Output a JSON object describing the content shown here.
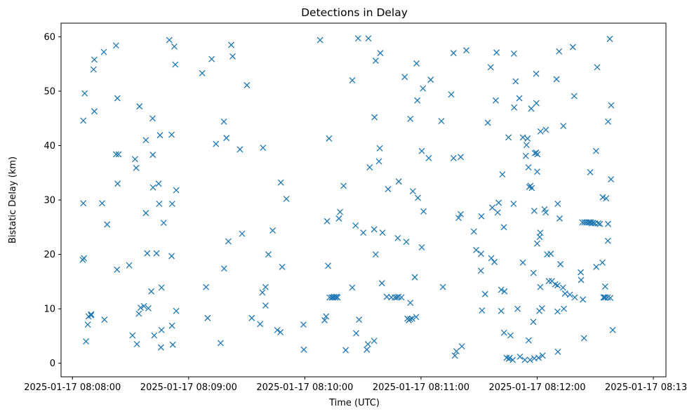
{
  "chart_data": {
    "type": "scatter",
    "title": "Detections in Delay",
    "xlabel": "Time (UTC)",
    "ylabel": "Bistatic Delay (km)",
    "marker": "x",
    "color": "#1f77b4",
    "grid": false,
    "legend": "none",
    "x_unit": "seconds after 2025-01-17 08:08:00 UTC",
    "xlim": [
      -5.9,
      306.5
    ],
    "ylim": [
      -2.5,
      62.5
    ],
    "x_ticks": [
      {
        "v": 0,
        "label": "2025-01-17 08:08:00"
      },
      {
        "v": 60,
        "label": "2025-01-17 08:09:00"
      },
      {
        "v": 120,
        "label": "2025-01-17 08:10:00"
      },
      {
        "v": 180,
        "label": "2025-01-17 08:11:00"
      },
      {
        "v": 240,
        "label": "2025-01-17 08:12:00"
      },
      {
        "v": 300,
        "label": "2025-01-17 08:13:00"
      }
    ],
    "y_ticks": [
      {
        "v": 0,
        "label": "0"
      },
      {
        "v": 10,
        "label": "10"
      },
      {
        "v": 20,
        "label": "20"
      },
      {
        "v": 30,
        "label": "30"
      },
      {
        "v": 40,
        "label": "40"
      },
      {
        "v": 50,
        "label": "50"
      },
      {
        "v": 60,
        "label": "60"
      }
    ],
    "points": [
      [
        5.6,
        44.6
      ],
      [
        5.6,
        29.4
      ],
      [
        5.3,
        19.0
      ],
      [
        5.9,
        19.3
      ],
      [
        6.3,
        49.6
      ],
      [
        7.0,
        4.0
      ],
      [
        7.9,
        7.1
      ],
      [
        8.3,
        8.6
      ],
      [
        9.6,
        8.8
      ],
      [
        9.6,
        9.0
      ],
      [
        10.9,
        54.0
      ],
      [
        11.3,
        55.8
      ],
      [
        11.3,
        46.3
      ],
      [
        15.3,
        29.4
      ],
      [
        16.2,
        57.2
      ],
      [
        16.5,
        8.0
      ],
      [
        17.9,
        25.5
      ],
      [
        22.5,
        58.4
      ],
      [
        22.5,
        38.4
      ],
      [
        23.2,
        48.7
      ],
      [
        23.3,
        33.0
      ],
      [
        23.0,
        17.2
      ],
      [
        23.8,
        38.4
      ],
      [
        29.3,
        18.0
      ],
      [
        31.0,
        5.1
      ],
      [
        32.3,
        37.5
      ],
      [
        32.9,
        35.9
      ],
      [
        33.3,
        3.5
      ],
      [
        34.3,
        9.1
      ],
      [
        34.6,
        47.2
      ],
      [
        35.2,
        10.2
      ],
      [
        36.9,
        10.5
      ],
      [
        37.9,
        41.0
      ],
      [
        37.9,
        27.6
      ],
      [
        38.6,
        20.2
      ],
      [
        39.2,
        10.1
      ],
      [
        40.7,
        13.2
      ],
      [
        41.4,
        45.0
      ],
      [
        41.5,
        38.3
      ],
      [
        41.6,
        32.3
      ],
      [
        42.2,
        5.1
      ],
      [
        43.4,
        20.2
      ],
      [
        44.5,
        33.0
      ],
      [
        44.8,
        29.3
      ],
      [
        45.2,
        41.9
      ],
      [
        45.7,
        2.9
      ],
      [
        46.0,
        6.1
      ],
      [
        46.0,
        13.9
      ],
      [
        47.1,
        25.8
      ],
      [
        50.0,
        59.4
      ],
      [
        51.2,
        42.0
      ],
      [
        51.2,
        19.7
      ],
      [
        51.4,
        6.9
      ],
      [
        51.5,
        29.3
      ],
      [
        51.8,
        3.4
      ],
      [
        52.6,
        58.2
      ],
      [
        53.1,
        54.9
      ],
      [
        53.6,
        9.6
      ],
      [
        53.6,
        31.8
      ],
      [
        67.0,
        53.3
      ],
      [
        69.0,
        14.0
      ],
      [
        69.8,
        8.3
      ],
      [
        71.9,
        55.9
      ],
      [
        74.1,
        40.3
      ],
      [
        76.5,
        3.7
      ],
      [
        78.2,
        44.4
      ],
      [
        78.3,
        17.4
      ],
      [
        79.5,
        41.4
      ],
      [
        80.5,
        22.4
      ],
      [
        82.0,
        58.5
      ],
      [
        82.7,
        56.4
      ],
      [
        86.5,
        39.3
      ],
      [
        87.6,
        23.8
      ],
      [
        90.1,
        51.1
      ],
      [
        92.6,
        8.3
      ],
      [
        96.9,
        7.2
      ],
      [
        98.4,
        39.6
      ],
      [
        98.1,
        13.0
      ],
      [
        99.7,
        10.6
      ],
      [
        99.7,
        14.0
      ],
      [
        101.2,
        20.0
      ],
      [
        103.4,
        24.4
      ],
      [
        105.8,
        6.1
      ],
      [
        107.6,
        33.2
      ],
      [
        107.4,
        5.7
      ],
      [
        108.3,
        17.7
      ],
      [
        110.5,
        30.2
      ],
      [
        119.3,
        7.1
      ],
      [
        119.5,
        2.5
      ],
      [
        127.9,
        59.4
      ],
      [
        130.2,
        7.9
      ],
      [
        131.0,
        8.6
      ],
      [
        131.5,
        26.1
      ],
      [
        132.0,
        17.9
      ],
      [
        132.5,
        41.3
      ],
      [
        132.8,
        12.1
      ],
      [
        133.9,
        12.1
      ],
      [
        134.5,
        12.1
      ],
      [
        135.2,
        12.2
      ],
      [
        135.8,
        12.1
      ],
      [
        136.4,
        12.2
      ],
      [
        136.9,
        12.1
      ],
      [
        137.6,
        26.6
      ],
      [
        138.2,
        27.8
      ],
      [
        140.0,
        32.6
      ],
      [
        141.1,
        2.4
      ],
      [
        144.5,
        13.9
      ],
      [
        144.5,
        52.0
      ],
      [
        146.5,
        5.5
      ],
      [
        146.2,
        25.3
      ],
      [
        147.5,
        59.7
      ],
      [
        148.0,
        8.0
      ],
      [
        150.2,
        24.0
      ],
      [
        152.0,
        2.5
      ],
      [
        152.6,
        3.5
      ],
      [
        152.8,
        59.7
      ],
      [
        153.5,
        36.0
      ],
      [
        155.8,
        4.1
      ],
      [
        155.8,
        24.6
      ],
      [
        156.0,
        45.2
      ],
      [
        156.6,
        20.0
      ],
      [
        156.6,
        55.6
      ],
      [
        158.3,
        37.1
      ],
      [
        158.7,
        39.5
      ],
      [
        159.0,
        57.0
      ],
      [
        159.8,
        14.7
      ],
      [
        160.1,
        24.0
      ],
      [
        162.3,
        12.2
      ],
      [
        163.0,
        32.0
      ],
      [
        164.7,
        12.1
      ],
      [
        166.5,
        12.1
      ],
      [
        167.5,
        12.1
      ],
      [
        168.0,
        23.0
      ],
      [
        168.3,
        12.2
      ],
      [
        168.5,
        33.4
      ],
      [
        169.9,
        12.1
      ],
      [
        171.6,
        52.6
      ],
      [
        172.4,
        22.3
      ],
      [
        173.0,
        8.2
      ],
      [
        173.7,
        7.9
      ],
      [
        174.4,
        8.1
      ],
      [
        174.5,
        44.9
      ],
      [
        174.5,
        11.1
      ],
      [
        175.4,
        8.2
      ],
      [
        175.8,
        31.6
      ],
      [
        176.8,
        15.8
      ],
      [
        177.5,
        8.5
      ],
      [
        177.7,
        55.1
      ],
      [
        178.1,
        48.3
      ],
      [
        178.4,
        30.4
      ],
      [
        180.4,
        21.3
      ],
      [
        180.4,
        39.0
      ],
      [
        181.0,
        50.5
      ],
      [
        181.3,
        27.9
      ],
      [
        184.0,
        37.7
      ],
      [
        185.0,
        52.1
      ],
      [
        190.5,
        44.5
      ],
      [
        191.3,
        14.0
      ],
      [
        195.6,
        49.4
      ],
      [
        196.8,
        57.0
      ],
      [
        196.8,
        37.7
      ],
      [
        197.5,
        1.4
      ],
      [
        198.3,
        2.2
      ],
      [
        199.4,
        26.7
      ],
      [
        200.5,
        27.4
      ],
      [
        200.5,
        37.9
      ],
      [
        201.1,
        3.1
      ],
      [
        203.4,
        57.5
      ],
      [
        207.3,
        24.2
      ],
      [
        208.5,
        20.8
      ],
      [
        210.9,
        17.0
      ],
      [
        211.0,
        20.1
      ],
      [
        211.2,
        27.0
      ],
      [
        211.5,
        9.7
      ],
      [
        213.1,
        12.7
      ],
      [
        214.5,
        44.2
      ],
      [
        216.0,
        54.4
      ],
      [
        216.3,
        19.3
      ],
      [
        216.8,
        28.6
      ],
      [
        217.9,
        18.6
      ],
      [
        218.6,
        48.3
      ],
      [
        219.0,
        57.1
      ],
      [
        219.6,
        27.7
      ],
      [
        220.1,
        29.5
      ],
      [
        221.4,
        9.6
      ],
      [
        221.4,
        13.5
      ],
      [
        222.0,
        34.7
      ],
      [
        222.8,
        25.0
      ],
      [
        222.9,
        5.6
      ],
      [
        223.1,
        13.2
      ],
      [
        224.2,
        1.0
      ],
      [
        225.2,
        41.5
      ],
      [
        225.4,
        0.8
      ],
      [
        225.8,
        1.0
      ],
      [
        226.2,
        5.1
      ],
      [
        227.4,
        0.6
      ],
      [
        227.8,
        29.3
      ],
      [
        228.0,
        56.9
      ],
      [
        228.1,
        47.0
      ],
      [
        228.9,
        51.8
      ],
      [
        229.9,
        10.0
      ],
      [
        230.8,
        48.7
      ],
      [
        231.1,
        1.2
      ],
      [
        232.6,
        18.5
      ],
      [
        232.6,
        41.5
      ],
      [
        233.6,
        0.6
      ],
      [
        234.1,
        38.1
      ],
      [
        234.5,
        40.1
      ],
      [
        235.0,
        41.3
      ],
      [
        235.5,
        36.0
      ],
      [
        235.6,
        4.2
      ],
      [
        235.9,
        32.4
      ],
      [
        236.3,
        0.6
      ],
      [
        236.5,
        32.6
      ],
      [
        236.9,
        46.8
      ],
      [
        237.2,
        32.2
      ],
      [
        238.0,
        7.6
      ],
      [
        238.1,
        16.6
      ],
      [
        238.5,
        28.0
      ],
      [
        238.5,
        0.9
      ],
      [
        238.8,
        38.6
      ],
      [
        239.5,
        38.7
      ],
      [
        239.5,
        53.2
      ],
      [
        239.6,
        47.8
      ],
      [
        240.0,
        22.0
      ],
      [
        240.0,
        35.2
      ],
      [
        240.1,
        38.4
      ],
      [
        240.7,
        1.0
      ],
      [
        241.1,
        9.6
      ],
      [
        241.3,
        23.2
      ],
      [
        241.6,
        24.0
      ],
      [
        241.6,
        14.0
      ],
      [
        241.7,
        42.6
      ],
      [
        242.5,
        10.1
      ],
      [
        242.8,
        1.4
      ],
      [
        243.8,
        28.3
      ],
      [
        244.5,
        42.9
      ],
      [
        244.4,
        27.7
      ],
      [
        245.1,
        20.0
      ],
      [
        246.0,
        15.1
      ],
      [
        247.0,
        20.1
      ],
      [
        247.6,
        15.1
      ],
      [
        249.3,
        14.5
      ],
      [
        250.0,
        52.2
      ],
      [
        250.5,
        14.3
      ],
      [
        250.5,
        9.5
      ],
      [
        250.6,
        29.3
      ],
      [
        250.7,
        2.1
      ],
      [
        251.3,
        57.3
      ],
      [
        251.6,
        26.6
      ],
      [
        252.0,
        18.2
      ],
      [
        253.3,
        13.9
      ],
      [
        253.5,
        43.6
      ],
      [
        253.8,
        10.0
      ],
      [
        254.4,
        12.8
      ],
      [
        256.9,
        12.6
      ],
      [
        258.4,
        58.1
      ],
      [
        259.1,
        49.1
      ],
      [
        259.4,
        12.1
      ],
      [
        262.5,
        16.7
      ],
      [
        262.7,
        15.3
      ],
      [
        263.3,
        25.9
      ],
      [
        263.6,
        11.7
      ],
      [
        264.2,
        4.6
      ],
      [
        264.4,
        25.9
      ],
      [
        265.4,
        25.9
      ],
      [
        266.4,
        25.9
      ],
      [
        267.1,
        25.9
      ],
      [
        267.4,
        35.1
      ],
      [
        267.7,
        25.9
      ],
      [
        268.2,
        25.7
      ],
      [
        268.9,
        25.8
      ],
      [
        269.8,
        25.7
      ],
      [
        270.5,
        17.7
      ],
      [
        270.4,
        39.0
      ],
      [
        271.0,
        54.4
      ],
      [
        271.5,
        25.7
      ],
      [
        272.4,
        25.6
      ],
      [
        273.7,
        18.5
      ],
      [
        273.9,
        30.5
      ],
      [
        274.2,
        12.1
      ],
      [
        274.6,
        12.1
      ],
      [
        275.1,
        14.1
      ],
      [
        275.2,
        12.1
      ],
      [
        275.6,
        30.3
      ],
      [
        276.4,
        12.1
      ],
      [
        276.6,
        25.6
      ],
      [
        276.5,
        22.5
      ],
      [
        276.6,
        44.4
      ],
      [
        277.5,
        59.6
      ],
      [
        277.8,
        12.0
      ],
      [
        278.1,
        33.8
      ],
      [
        278.2,
        47.4
      ],
      [
        279.0,
        6.1
      ]
    ]
  }
}
